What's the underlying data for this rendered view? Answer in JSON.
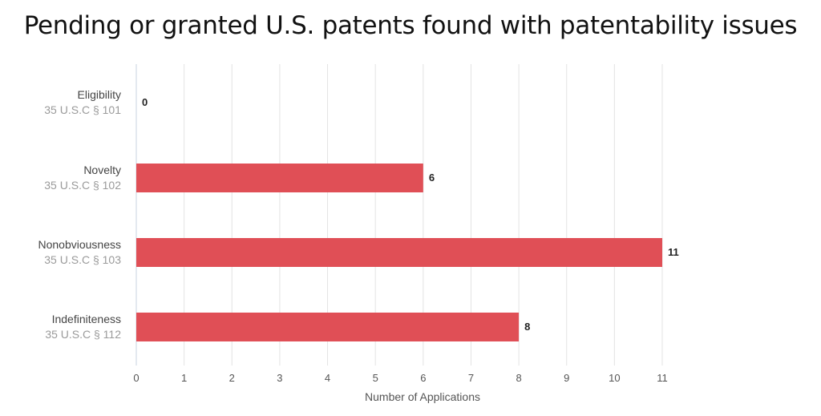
{
  "chart_data": {
    "type": "bar",
    "orientation": "horizontal",
    "title": "Pending or granted U.S. patents found with patentability issues",
    "xlabel": "Number of Applications",
    "xlim": [
      0,
      11
    ],
    "xticks": [
      0,
      1,
      2,
      3,
      4,
      5,
      6,
      7,
      8,
      9,
      10,
      11
    ],
    "grid": true,
    "categories": [
      {
        "name": "Eligibility",
        "statute": "35 U.S.C § 101"
      },
      {
        "name": "Novelty",
        "statute": "35 U.S.C § 102"
      },
      {
        "name": "Nonobviousness",
        "statute": "35 U.S.C § 103"
      },
      {
        "name": "Indefiniteness",
        "statute": "35 U.S.C § 112"
      }
    ],
    "values": [
      0,
      6,
      11,
      8
    ],
    "bar_color": "#e04f56"
  }
}
